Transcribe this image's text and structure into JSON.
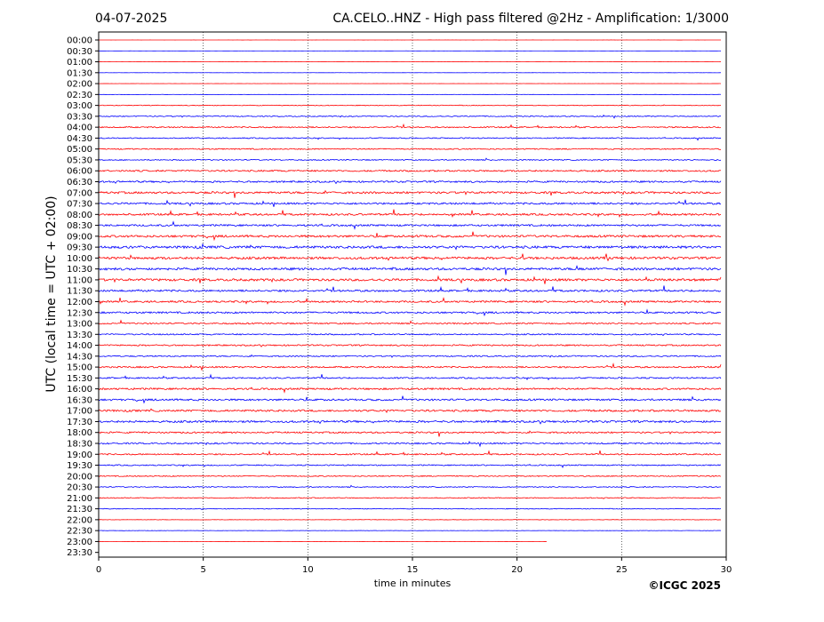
{
  "header": {
    "date": "04-07-2025",
    "title": "CA.CELO..HNZ - High pass filtered @2Hz - Amplification: 1/3000"
  },
  "footer": {
    "copyright": "©ICGC 2025"
  },
  "colors": {
    "trace_a": "#ff0000",
    "trace_b": "#0000ff",
    "grid": "#000000",
    "axes": "#000000"
  },
  "chart_data": {
    "type": "line",
    "title": "CA.CELO..HNZ - High pass filtered @2Hz - Amplification: 1/3000",
    "xlabel": "time in minutes",
    "ylabel": "UTC (local time = UTC + 02:00)",
    "xlim": [
      0,
      30
    ],
    "x_ticks": [
      "0",
      "5",
      "10",
      "15",
      "20",
      "25",
      "30"
    ],
    "x_tick_values": [
      0,
      5,
      10,
      15,
      20,
      25,
      30
    ],
    "grid": "vertical dotted lines at x ticks",
    "y_tick_labels": [
      "00:00",
      "00:30",
      "01:00",
      "01:30",
      "02:00",
      "02:30",
      "03:00",
      "03:30",
      "04:00",
      "04:30",
      "05:00",
      "05:30",
      "06:00",
      "06:30",
      "07:00",
      "07:30",
      "08:00",
      "08:30",
      "09:00",
      "09:30",
      "10:00",
      "10:30",
      "11:00",
      "11:30",
      "12:00",
      "12:30",
      "13:00",
      "13:30",
      "14:00",
      "14:30",
      "15:00",
      "15:30",
      "16:00",
      "16:30",
      "17:00",
      "17:30",
      "18:00",
      "18:30",
      "19:00",
      "19:30",
      "20:00",
      "20:30",
      "21:00",
      "21:30",
      "22:00",
      "22:30",
      "23:00",
      "23:30"
    ],
    "trace_colors": [
      "red",
      "blue"
    ],
    "trace_activity": [
      0.03,
      0.04,
      0.05,
      0.07,
      0.06,
      0.1,
      0.28,
      0.38,
      0.5,
      0.42,
      0.45,
      0.4,
      0.62,
      0.66,
      0.8,
      0.72,
      0.75,
      0.7,
      0.85,
      0.95,
      0.92,
      0.9,
      0.9,
      0.75,
      0.7,
      0.68,
      0.55,
      0.5,
      0.55,
      0.5,
      0.6,
      0.55,
      0.7,
      0.72,
      0.75,
      0.8,
      0.62,
      0.58,
      0.55,
      0.45,
      0.42,
      0.38,
      0.35,
      0.28,
      0.15,
      0.12,
      0.06,
      0.0
    ]
  }
}
